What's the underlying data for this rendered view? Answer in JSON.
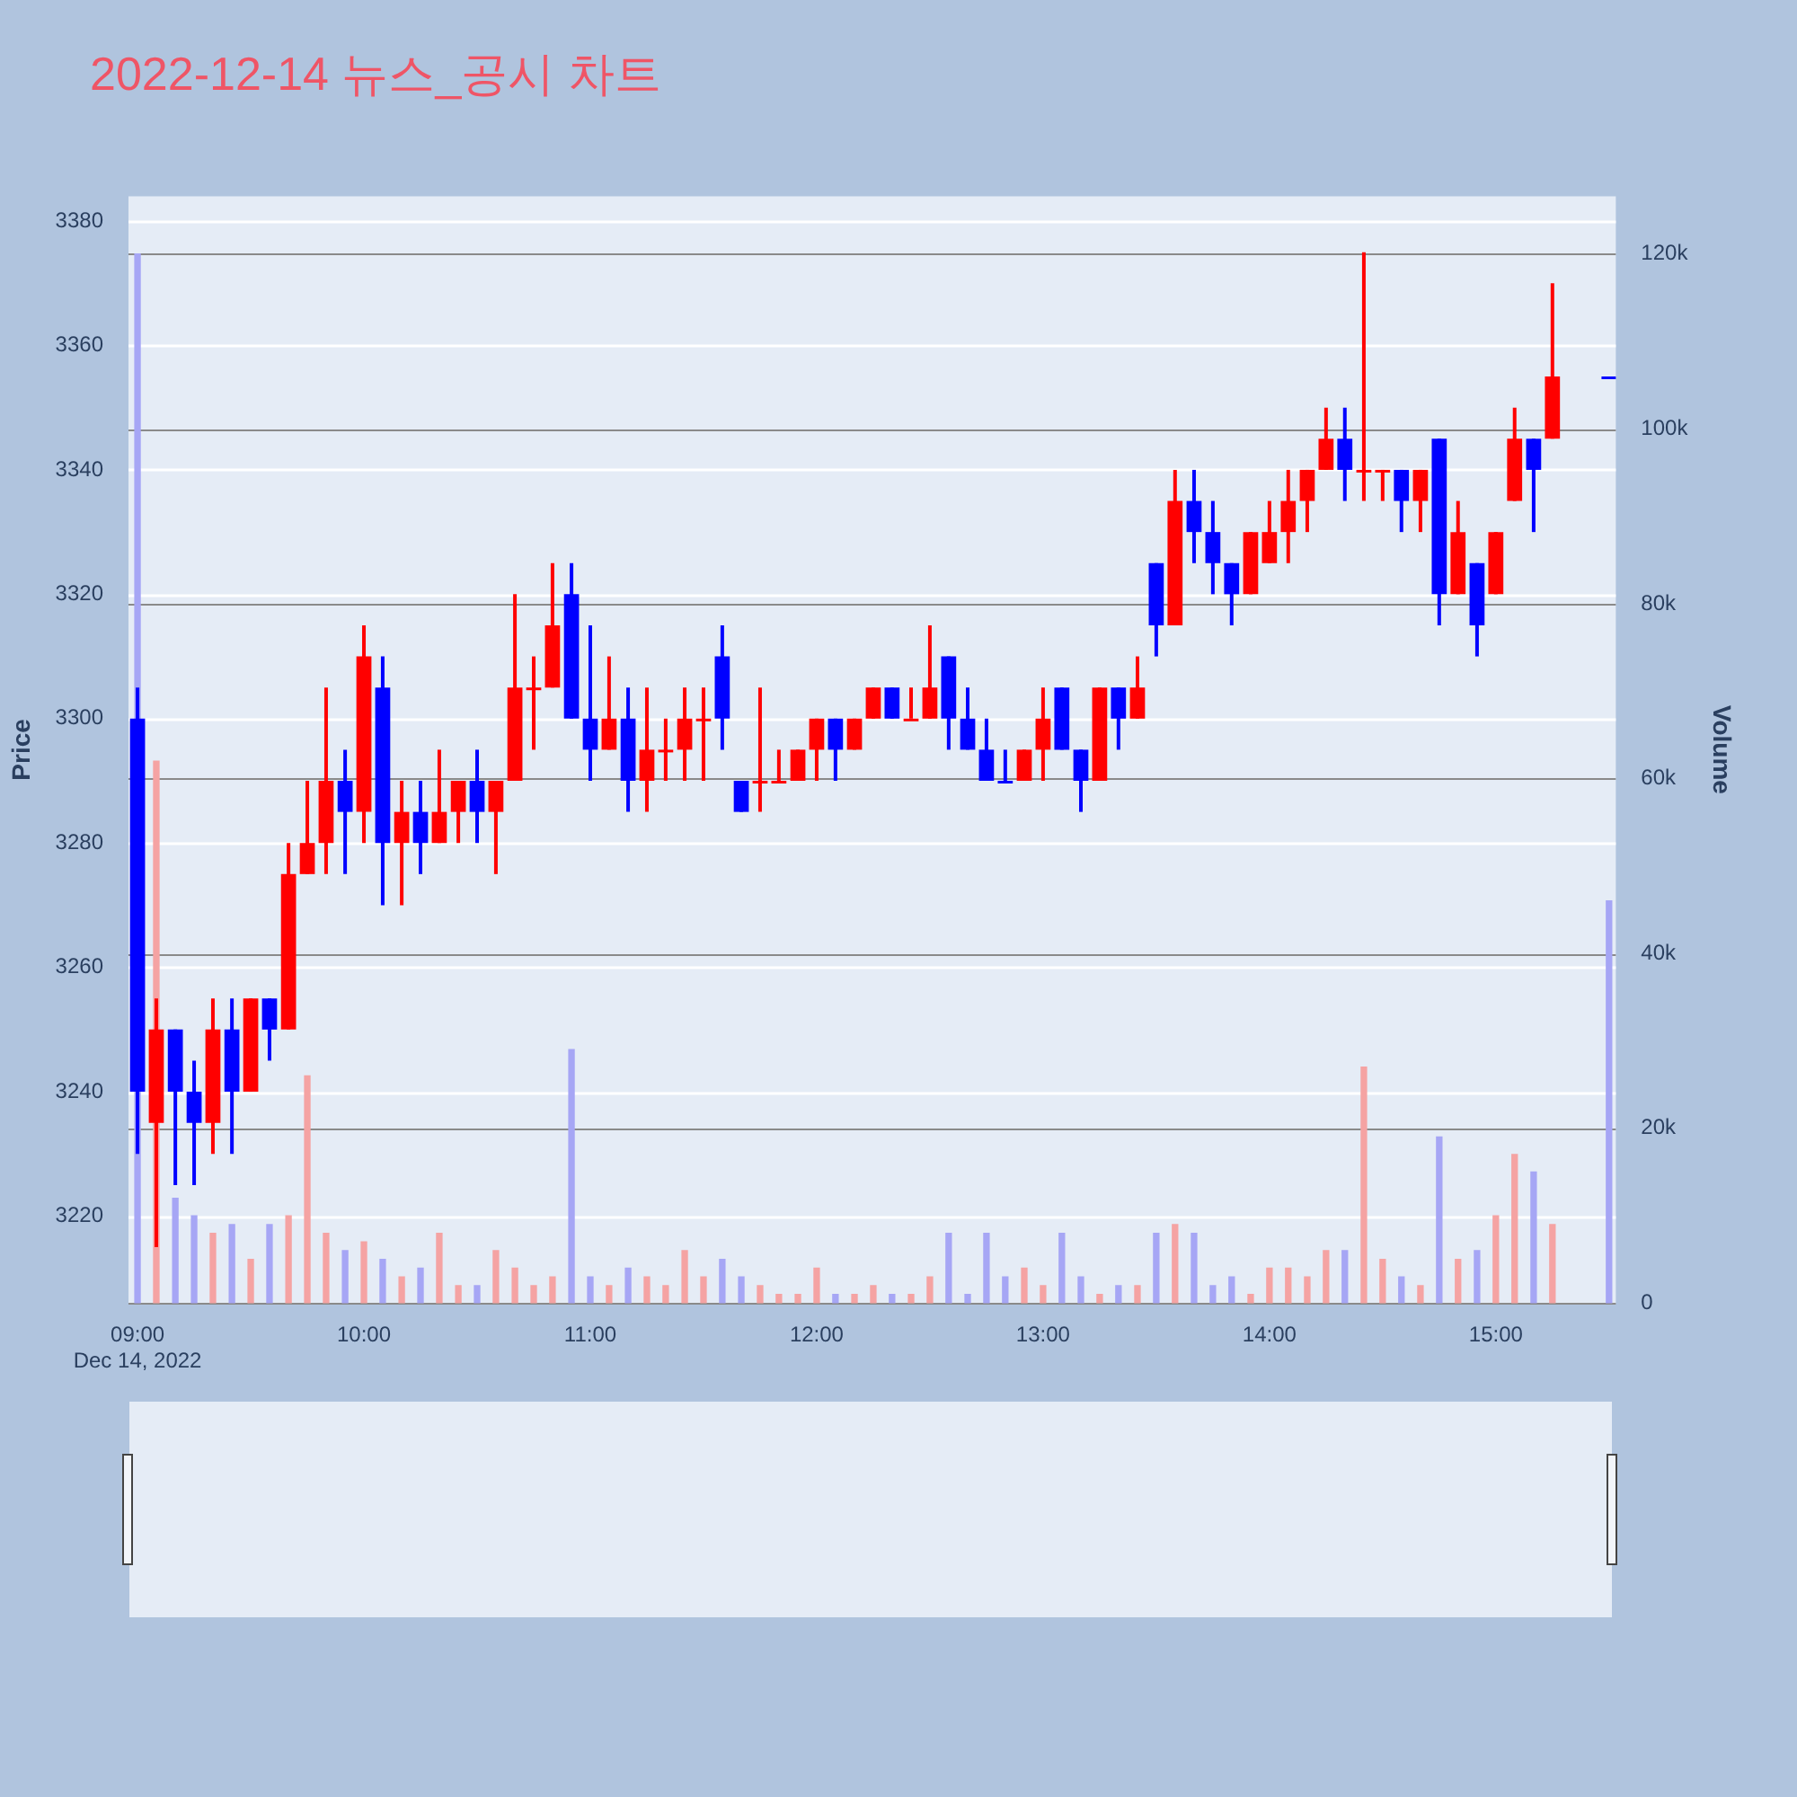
{
  "chart_data": {
    "type": "candlestick",
    "title": "2022-12-14 뉴스_공시 차트",
    "ylabel": "Price",
    "y2label": "Volume",
    "x": [
      9,
      9.083,
      9.167,
      9.25,
      9.333,
      9.417,
      9.5,
      9.583,
      9.667,
      9.75,
      9.833,
      9.917,
      10,
      10.083,
      10.167,
      10.25,
      10.333,
      10.417,
      10.5,
      10.583,
      10.667,
      10.75,
      10.833,
      10.917,
      11,
      11.083,
      11.167,
      11.25,
      11.333,
      11.417,
      11.5,
      11.583,
      11.667,
      11.75,
      11.833,
      11.917,
      12,
      12.083,
      12.167,
      12.25,
      12.333,
      12.417,
      12.5,
      12.583,
      12.667,
      12.75,
      12.833,
      12.917,
      13,
      13.083,
      13.167,
      13.25,
      13.333,
      13.417,
      13.5,
      13.583,
      13.667,
      13.75,
      13.833,
      13.917,
      14,
      14.083,
      14.167,
      14.25,
      14.333,
      14.417,
      14.5,
      14.583,
      14.667,
      14.75,
      14.833,
      14.917,
      15,
      15.083,
      15.167,
      15.25,
      15.5
    ],
    "ohlc": [
      [
        3300,
        3305,
        3230,
        3240
      ],
      [
        3235,
        3255,
        3215,
        3250
      ],
      [
        3250,
        3250,
        3225,
        3240
      ],
      [
        3240,
        3245,
        3225,
        3235
      ],
      [
        3235,
        3255,
        3230,
        3250
      ],
      [
        3250,
        3255,
        3230,
        3240
      ],
      [
        3240,
        3255,
        3240,
        3255
      ],
      [
        3255,
        3255,
        3245,
        3250
      ],
      [
        3250,
        3280,
        3250,
        3275
      ],
      [
        3275,
        3290,
        3275,
        3280
      ],
      [
        3280,
        3305,
        3275,
        3290
      ],
      [
        3290,
        3295,
        3275,
        3285
      ],
      [
        3285,
        3315,
        3280,
        3310
      ],
      [
        3305,
        3310,
        3270,
        3280
      ],
      [
        3280,
        3290,
        3270,
        3285
      ],
      [
        3285,
        3290,
        3275,
        3280
      ],
      [
        3280,
        3295,
        3280,
        3285
      ],
      [
        3285,
        3290,
        3280,
        3290
      ],
      [
        3290,
        3295,
        3280,
        3285
      ],
      [
        3285,
        3290,
        3275,
        3290
      ],
      [
        3290,
        3320,
        3290,
        3305
      ],
      [
        3305,
        3310,
        3295,
        3305
      ],
      [
        3305,
        3325,
        3305,
        3315
      ],
      [
        3320,
        3325,
        3300,
        3300
      ],
      [
        3300,
        3315,
        3290,
        3295
      ],
      [
        3295,
        3310,
        3295,
        3300
      ],
      [
        3300,
        3305,
        3285,
        3290
      ],
      [
        3290,
        3305,
        3285,
        3295
      ],
      [
        3295,
        3300,
        3290,
        3295
      ],
      [
        3295,
        3305,
        3290,
        3300
      ],
      [
        3300,
        3305,
        3290,
        3300
      ],
      [
        3310,
        3315,
        3295,
        3300
      ],
      [
        3290,
        3290,
        3285,
        3285
      ],
      [
        3290,
        3305,
        3285,
        3290
      ],
      [
        3290,
        3295,
        3290,
        3290
      ],
      [
        3290,
        3295,
        3290,
        3295
      ],
      [
        3295,
        3300,
        3290,
        3300
      ],
      [
        3300,
        3300,
        3290,
        3295
      ],
      [
        3295,
        3300,
        3295,
        3300
      ],
      [
        3300,
        3305,
        3300,
        3305
      ],
      [
        3305,
        3305,
        3300,
        3300
      ],
      [
        3300,
        3305,
        3300,
        3300
      ],
      [
        3300,
        3315,
        3300,
        3305
      ],
      [
        3310,
        3310,
        3295,
        3300
      ],
      [
        3300,
        3305,
        3295,
        3295
      ],
      [
        3295,
        3300,
        3290,
        3290
      ],
      [
        3290,
        3295,
        3290,
        3290
      ],
      [
        3290,
        3295,
        3290,
        3295
      ],
      [
        3295,
        3305,
        3290,
        3300
      ],
      [
        3305,
        3305,
        3295,
        3295
      ],
      [
        3295,
        3295,
        3285,
        3290
      ],
      [
        3290,
        3305,
        3290,
        3305
      ],
      [
        3305,
        3305,
        3295,
        3300
      ],
      [
        3300,
        3310,
        3300,
        3305
      ],
      [
        3325,
        3325,
        3310,
        3315
      ],
      [
        3315,
        3340,
        3315,
        3335
      ],
      [
        3335,
        3340,
        3325,
        3330
      ],
      [
        3330,
        3335,
        3320,
        3325
      ],
      [
        3325,
        3325,
        3315,
        3320
      ],
      [
        3320,
        3330,
        3320,
        3330
      ],
      [
        3325,
        3335,
        3325,
        3330
      ],
      [
        3330,
        3340,
        3325,
        3335
      ],
      [
        3335,
        3340,
        3330,
        3340
      ],
      [
        3340,
        3350,
        3340,
        3345
      ],
      [
        3345,
        3350,
        3335,
        3340
      ],
      [
        3340,
        3375,
        3335,
        3340
      ],
      [
        3340,
        3340,
        3335,
        3340
      ],
      [
        3340,
        3340,
        3330,
        3335
      ],
      [
        3335,
        3340,
        3330,
        3340
      ],
      [
        3345,
        3345,
        3315,
        3320
      ],
      [
        3320,
        3335,
        3320,
        3330
      ],
      [
        3325,
        3325,
        3310,
        3315
      ],
      [
        3320,
        3330,
        3320,
        3330
      ],
      [
        3335,
        3350,
        3335,
        3345
      ],
      [
        3345,
        3345,
        3330,
        3340
      ],
      [
        3345,
        3370,
        3345,
        3355
      ],
      [
        3355,
        3355,
        3355,
        3355
      ]
    ],
    "colors": [
      "#0000ff",
      "#ff0000",
      "#0000ff",
      "#0000ff",
      "#ff0000",
      "#0000ff",
      "#ff0000",
      "#0000ff",
      "#ff0000",
      "#ff0000",
      "#ff0000",
      "#0000ff",
      "#ff0000",
      "#0000ff",
      "#ff0000",
      "#0000ff",
      "#ff0000",
      "#ff0000",
      "#0000ff",
      "#ff0000",
      "#ff0000",
      "#ff0000",
      "#ff0000",
      "#0000ff",
      "#0000ff",
      "#ff0000",
      "#0000ff",
      "#ff0000",
      "#ff0000",
      "#ff0000",
      "#ff0000",
      "#0000ff",
      "#0000ff",
      "#ff0000",
      "#ff0000",
      "#ff0000",
      "#ff0000",
      "#0000ff",
      "#ff0000",
      "#ff0000",
      "#0000ff",
      "#ff0000",
      "#ff0000",
      "#0000ff",
      "#0000ff",
      "#0000ff",
      "#0000ff",
      "#ff0000",
      "#ff0000",
      "#0000ff",
      "#0000ff",
      "#ff0000",
      "#0000ff",
      "#ff0000",
      "#0000ff",
      "#ff0000",
      "#0000ff",
      "#0000ff",
      "#0000ff",
      "#ff0000",
      "#ff0000",
      "#ff0000",
      "#ff0000",
      "#ff0000",
      "#0000ff",
      "#ff0000",
      "#ff0000",
      "#0000ff",
      "#ff0000",
      "#0000ff",
      "#ff0000",
      "#0000ff",
      "#ff0000",
      "#ff0000",
      "#0000ff",
      "#ff0000",
      "#0000ff"
    ],
    "series": [
      {
        "type": "bar",
        "axis": "y2",
        "values": [
          120000,
          62000,
          12000,
          10000,
          8000,
          9000,
          5000,
          9000,
          10000,
          26000,
          8000,
          6000,
          7000,
          5000,
          3000,
          4000,
          8000,
          2000,
          2000,
          6000,
          4000,
          2000,
          3000,
          29000,
          3000,
          2000,
          4000,
          3000,
          2000,
          6000,
          3000,
          5000,
          3000,
          2000,
          1000,
          1000,
          4000,
          1000,
          1000,
          2000,
          1000,
          1000,
          3000,
          8000,
          1000,
          8000,
          3000,
          4000,
          2000,
          8000,
          3000,
          1000,
          2000,
          2000,
          8000,
          9000,
          8000,
          2000,
          3000,
          1000,
          4000,
          4000,
          3000,
          6000,
          6000,
          27000,
          5000,
          3000,
          2000,
          19000,
          5000,
          6000,
          10000,
          17000,
          15000,
          9000,
          46000
        ],
        "colors": [
          "#a6a6f5",
          "#f5a3a3",
          "#a6a6f5",
          "#a6a6f5",
          "#f5a3a3",
          "#a6a6f5",
          "#f5a3a3",
          "#a6a6f5",
          "#f5a3a3",
          "#f5a3a3",
          "#f5a3a3",
          "#a6a6f5",
          "#f5a3a3",
          "#a6a6f5",
          "#f5a3a3",
          "#a6a6f5",
          "#f5a3a3",
          "#f5a3a3",
          "#a6a6f5",
          "#f5a3a3",
          "#f5a3a3",
          "#f5a3a3",
          "#f5a3a3",
          "#a6a6f5",
          "#a6a6f5",
          "#f5a3a3",
          "#a6a6f5",
          "#f5a3a3",
          "#f5a3a3",
          "#f5a3a3",
          "#f5a3a3",
          "#a6a6f5",
          "#a6a6f5",
          "#f5a3a3",
          "#f5a3a3",
          "#f5a3a3",
          "#f5a3a3",
          "#a6a6f5",
          "#f5a3a3",
          "#f5a3a3",
          "#a6a6f5",
          "#f5a3a3",
          "#f5a3a3",
          "#a6a6f5",
          "#a6a6f5",
          "#a6a6f5",
          "#a6a6f5",
          "#f5a3a3",
          "#f5a3a3",
          "#a6a6f5",
          "#a6a6f5",
          "#f5a3a3",
          "#a6a6f5",
          "#f5a3a3",
          "#a6a6f5",
          "#f5a3a3",
          "#a6a6f5",
          "#a6a6f5",
          "#a6a6f5",
          "#f5a3a3",
          "#f5a3a3",
          "#f5a3a3",
          "#f5a3a3",
          "#f5a3a3",
          "#a6a6f5",
          "#f5a3a3",
          "#f5a3a3",
          "#a6a6f5",
          "#f5a3a3",
          "#a6a6f5",
          "#f5a3a3",
          "#a6a6f5",
          "#f5a3a3",
          "#f5a3a3",
          "#a6a6f5",
          "#f5a3a3",
          "#a6a6f5"
        ]
      }
    ],
    "xlim": [
      8.96,
      15.53
    ],
    "xticks": [
      {
        "value": 9,
        "label": "09:00\nDec 14, 2022"
      },
      {
        "value": 10,
        "label": "10:00"
      },
      {
        "value": 11,
        "label": "11:00"
      },
      {
        "value": 12,
        "label": "12:00"
      },
      {
        "value": 13,
        "label": "13:00"
      },
      {
        "value": 14,
        "label": "14:00"
      },
      {
        "value": 15,
        "label": "15:00"
      }
    ],
    "ylim": [
      3206,
      3384
    ],
    "yticks": [
      3220,
      3240,
      3260,
      3280,
      3300,
      3320,
      3340,
      3360,
      3380
    ],
    "y2lim": [
      0,
      126600
    ],
    "y2ticks": [
      0,
      {
        "value": 20000,
        "label": "20k"
      },
      {
        "value": 40000,
        "label": "40k"
      },
      {
        "value": 60000,
        "label": "60k"
      },
      {
        "value": 80000,
        "label": "80k"
      },
      {
        "value": 100000,
        "label": "100k"
      },
      {
        "value": 120000,
        "label": "120k"
      }
    ],
    "grid": "y"
  }
}
